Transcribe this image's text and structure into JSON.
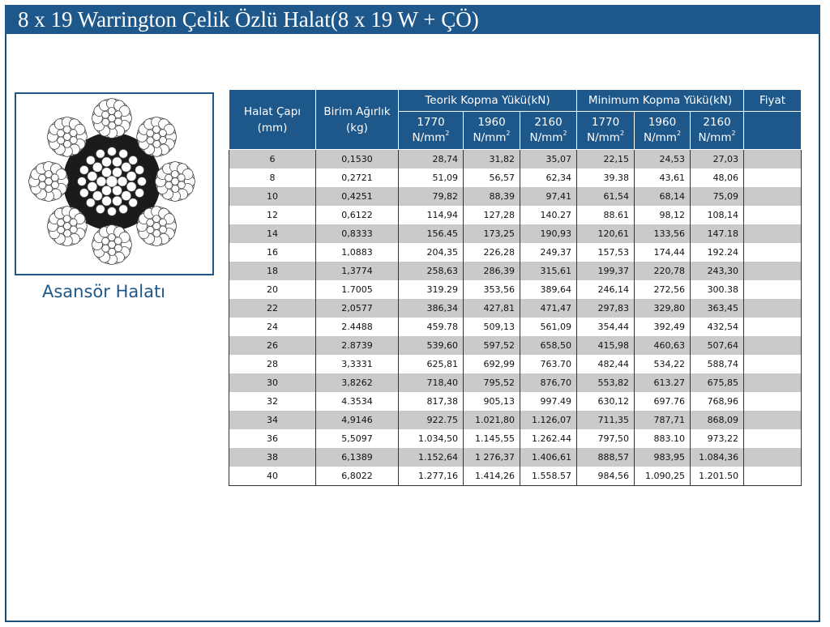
{
  "title": "8 x 19 Warrington Çelik Özlü Halat(8 x 19 W + ÇÖ)",
  "image_caption": "Asansör Halatı",
  "colors": {
    "header_blue": "#1e578a",
    "row_gray": "#c9cacc",
    "core_black": "#1b1b1b"
  },
  "icons": [
    "wire-rope-cross-section-icon"
  ],
  "table": {
    "headers": {
      "diameter": "Halat Çapı (mm)",
      "unit_weight": "Birim Ağırlık (kg)",
      "theoretical": "Teorik Kopma Yükü(kN)",
      "minimum": "Minimum Kopma Yükü(kN)",
      "price": "Fiyat",
      "grade_1770": "1770",
      "grade_1960": "1960",
      "grade_2160": "2160",
      "unit": "N/mm",
      "unit_exp": "2"
    },
    "rows": [
      [
        "6",
        "0,1530",
        "28,74",
        "31,82",
        "35,07",
        "22,15",
        "24,53",
        "27,03",
        ""
      ],
      [
        "8",
        "0,2721",
        "51,09",
        "56,57",
        "62,34",
        "39.38",
        "43,61",
        "48,06",
        ""
      ],
      [
        "10",
        "0,4251",
        "79,82",
        "88,39",
        "97,41",
        "61,54",
        "68,14",
        "75,09",
        ""
      ],
      [
        "12",
        "0,6122",
        "114,94",
        "127,28",
        "140.27",
        "88.61",
        "98,12",
        "108,14",
        ""
      ],
      [
        "14",
        "0,8333",
        "156.45",
        "173,25",
        "190,93",
        "120,61",
        "133,56",
        "147.18",
        ""
      ],
      [
        "16",
        "1,0883",
        "204,35",
        "226,28",
        "249,37",
        "157,53",
        "174,44",
        "192.24",
        ""
      ],
      [
        "18",
        "1,3774",
        "258,63",
        "286,39",
        "315,61",
        "199,37",
        "220,78",
        "243,30",
        ""
      ],
      [
        "20",
        "1.7005",
        "319.29",
        "353,56",
        "389,64",
        "246,14",
        "272,56",
        "300.38",
        ""
      ],
      [
        "22",
        "2,0577",
        "386,34",
        "427,81",
        "471,47",
        "297,83",
        "329,80",
        "363,45",
        ""
      ],
      [
        "24",
        "2.4488",
        "459.78",
        "509,13",
        "561,09",
        "354,44",
        "392,49",
        "432,54",
        ""
      ],
      [
        "26",
        "2.8739",
        "539,60",
        "597,52",
        "658,50",
        "415,98",
        "460,63",
        "507,64",
        ""
      ],
      [
        "28",
        "3,3331",
        "625,81",
        "692,99",
        "763.70",
        "482,44",
        "534,22",
        "588,74",
        ""
      ],
      [
        "30",
        "3,8262",
        "718,40",
        "795,52",
        "876,70",
        "553,82",
        "613.27",
        "675,85",
        ""
      ],
      [
        "32",
        "4.3534",
        "817,38",
        "905,13",
        "997.49",
        "630,12",
        "697.76",
        "768,96",
        ""
      ],
      [
        "34",
        "4,9146",
        "922.75",
        "1.021,80",
        "1.126,07",
        "711,35",
        "787,71",
        "868,09",
        ""
      ],
      [
        "36",
        "5,5097",
        "1.034,50",
        "1.145,55",
        "1.262.44",
        "797,50",
        "883.10",
        "973,22",
        ""
      ],
      [
        "38",
        "6,1389",
        "1.152,64",
        "1 276,37",
        "1.406,61",
        "888,57",
        "983,95",
        "1.084,36",
        ""
      ],
      [
        "40",
        "6,8022",
        "1.277,16",
        "1.414,26",
        "1.558.57",
        "984,56",
        "1.090,25",
        "1.201.50",
        ""
      ]
    ]
  }
}
